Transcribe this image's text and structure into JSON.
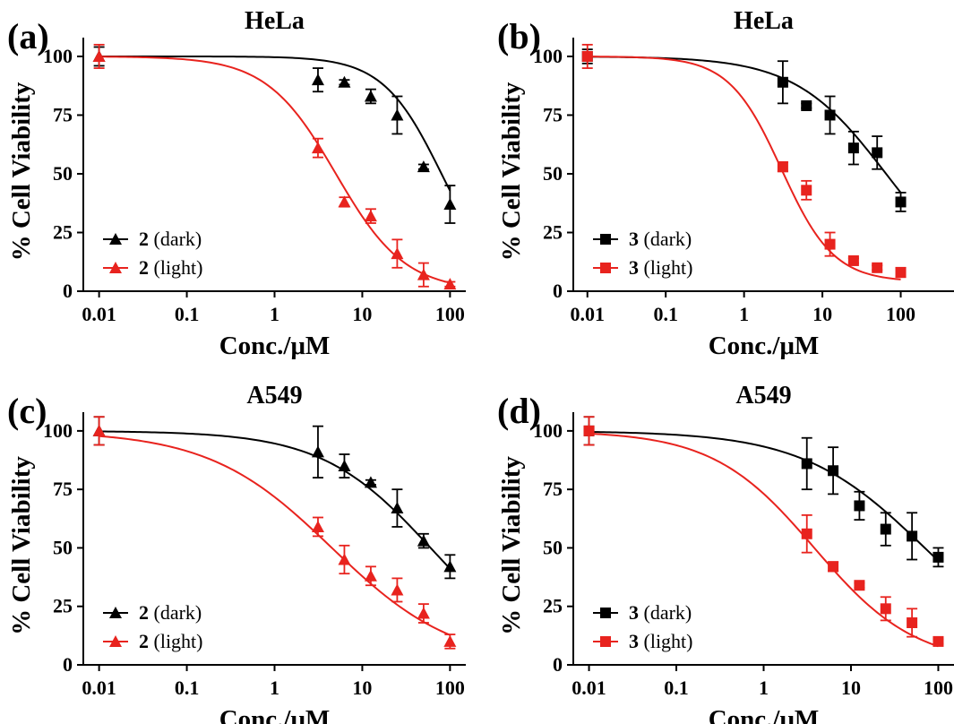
{
  "colors": {
    "dark": "#000000",
    "light": "#e8231e"
  },
  "chart_data": [
    {
      "type": "scatter",
      "panel_label": "(a)",
      "title": "HeLa",
      "xlabel": "Conc./μM",
      "ylabel": "% Cell Viability",
      "xscale": "log",
      "xlim": [
        0.01,
        100
      ],
      "ylim": [
        0,
        100
      ],
      "xticks": [
        0.01,
        0.1,
        1,
        10,
        100
      ],
      "xtick_labels": [
        "0.01",
        "0.1",
        "1",
        "10",
        "100"
      ],
      "yticks": [
        0,
        25,
        50,
        75,
        100
      ],
      "ytick_labels": [
        "0",
        "25",
        "50",
        "75",
        "100"
      ],
      "legend_position": "bottom-left",
      "grid": false,
      "series": [
        {
          "name_bold": "2",
          "name_rest": " (dark)",
          "color": "#000000",
          "marker": "triangle",
          "x": [
            0.01,
            3.125,
            6.25,
            12.5,
            25,
            50,
            100
          ],
          "y": [
            100,
            90,
            89,
            83,
            75,
            53,
            37
          ],
          "err": [
            4,
            5,
            1,
            3,
            8,
            1,
            8
          ],
          "fit": {
            "top": 100,
            "bottom": 0,
            "ic50": 80,
            "hill": 1.3
          }
        },
        {
          "name_bold": "2",
          "name_rest": " (light)",
          "color": "#e8231e",
          "marker": "triangle",
          "x": [
            0.01,
            3.125,
            6.25,
            12.5,
            25,
            50,
            100
          ],
          "y": [
            100,
            61,
            38,
            32,
            16,
            7,
            3
          ],
          "err": [
            5,
            4,
            2,
            3,
            6,
            5,
            1
          ],
          "fit": {
            "top": 100,
            "bottom": 0,
            "ic50": 5,
            "hill": 1.1
          }
        }
      ]
    },
    {
      "type": "scatter",
      "panel_label": "(b)",
      "title": "HeLa",
      "xlabel": "Conc./μM",
      "ylabel": "% Cell Viability",
      "xscale": "log",
      "xlim": [
        0.01,
        100
      ],
      "ylim": [
        0,
        100
      ],
      "xticks": [
        0.01,
        0.1,
        1,
        10,
        100
      ],
      "xtick_labels": [
        "0.01",
        "0.1",
        "1",
        "10",
        "100"
      ],
      "yticks": [
        0,
        25,
        50,
        75,
        100
      ],
      "ytick_labels": [
        "0",
        "25",
        "50",
        "75",
        "100"
      ],
      "legend_position": "bottom-left",
      "grid": false,
      "series": [
        {
          "name_bold": "3",
          "name_rest": " (dark)",
          "color": "#000000",
          "marker": "square",
          "x": [
            0.01,
            3.125,
            6.25,
            12.5,
            25,
            50,
            100
          ],
          "y": [
            100,
            89,
            79,
            75,
            61,
            59,
            38
          ],
          "err": [
            3,
            9,
            1,
            8,
            7,
            7,
            4
          ],
          "fit": {
            "top": 100,
            "bottom": 0,
            "ic50": 65,
            "hill": 0.75
          }
        },
        {
          "name_bold": "3",
          "name_rest": " (light)",
          "color": "#e8231e",
          "marker": "square",
          "x": [
            0.01,
            3.125,
            6.25,
            12.5,
            25,
            50,
            100
          ],
          "y": [
            100,
            53,
            43,
            20,
            13,
            10,
            8
          ],
          "err": [
            5,
            2,
            4,
            5,
            1,
            1,
            2
          ],
          "fit": {
            "top": 100,
            "bottom": 4,
            "ic50": 3,
            "hill": 1.3
          }
        }
      ]
    },
    {
      "type": "scatter",
      "panel_label": "(c)",
      "title": "A549",
      "xlabel": "Conc./μM",
      "ylabel": "% Cell Viability",
      "xscale": "log",
      "xlim": [
        0.01,
        100
      ],
      "ylim": [
        0,
        100
      ],
      "xticks": [
        0.01,
        0.1,
        1,
        10,
        100
      ],
      "xtick_labels": [
        "0.01",
        "0.1",
        "1",
        "10",
        "100"
      ],
      "yticks": [
        0,
        25,
        50,
        75,
        100
      ],
      "ytick_labels": [
        "0",
        "25",
        "50",
        "75",
        "100"
      ],
      "legend_position": "bottom-left",
      "grid": false,
      "series": [
        {
          "name_bold": "2",
          "name_rest": " (dark)",
          "color": "#000000",
          "marker": "triangle",
          "x": [
            0.01,
            3.125,
            6.25,
            12.5,
            25,
            50,
            100
          ],
          "y": [
            100,
            91,
            85,
            78,
            67,
            53,
            42
          ],
          "err": [
            6,
            11,
            5,
            1,
            8,
            3,
            5
          ],
          "fit": {
            "top": 100,
            "bottom": 0,
            "ic50": 60,
            "hill": 0.7
          }
        },
        {
          "name_bold": "2",
          "name_rest": " (light)",
          "color": "#e8231e",
          "marker": "triangle",
          "x": [
            0.01,
            3.125,
            6.25,
            12.5,
            25,
            50,
            100
          ],
          "y": [
            100,
            59,
            45,
            38,
            32,
            22,
            10
          ],
          "err": [
            6,
            4,
            6,
            4,
            5,
            4,
            3
          ],
          "fit": {
            "top": 100,
            "bottom": 0,
            "ic50": 4.5,
            "hill": 0.62
          }
        }
      ]
    },
    {
      "type": "scatter",
      "panel_label": "(d)",
      "title": "A549",
      "xlabel": "Conc./μM",
      "ylabel": "% Cell Viability",
      "xscale": "log",
      "xlim": [
        0.01,
        100
      ],
      "ylim": [
        0,
        100
      ],
      "xticks": [
        0.01,
        0.1,
        1,
        10,
        100
      ],
      "xtick_labels": [
        "0.01",
        "0.1",
        "1",
        "10",
        "100"
      ],
      "yticks": [
        0,
        25,
        50,
        75,
        100
      ],
      "ytick_labels": [
        "0",
        "25",
        "50",
        "75",
        "100"
      ],
      "legend_position": "bottom-left",
      "grid": false,
      "series": [
        {
          "name_bold": "3",
          "name_rest": " (dark)",
          "color": "#000000",
          "marker": "square",
          "x": [
            0.01,
            3.125,
            6.25,
            12.5,
            25,
            50,
            100
          ],
          "y": [
            100,
            86,
            83,
            68,
            58,
            55,
            46
          ],
          "err": [
            6,
            11,
            10,
            6,
            7,
            10,
            4
          ],
          "fit": {
            "top": 100,
            "bottom": 0,
            "ic50": 70,
            "hill": 0.62
          }
        },
        {
          "name_bold": "3",
          "name_rest": " (light)",
          "color": "#e8231e",
          "marker": "square",
          "x": [
            0.01,
            3.125,
            6.25,
            12.5,
            25,
            50,
            100
          ],
          "y": [
            100,
            56,
            42,
            34,
            24,
            18,
            10
          ],
          "err": [
            6,
            8,
            2,
            1,
            5,
            6,
            1
          ],
          "fit": {
            "top": 100,
            "bottom": 0,
            "ic50": 3.8,
            "hill": 0.75
          }
        }
      ]
    }
  ]
}
